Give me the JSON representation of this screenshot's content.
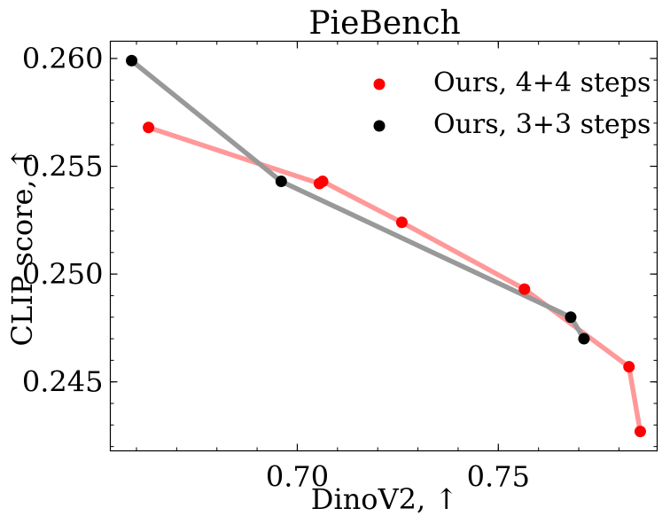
{
  "chart_data": {
    "type": "scatter",
    "title": "PieBench",
    "xlabel": "DinoV2, ↑",
    "ylabel": "CLIP score, ↑",
    "xlim": [
      0.6535,
      0.7895
    ],
    "ylim": [
      0.2418,
      0.2608
    ],
    "x_ticks": [
      0.7,
      0.75
    ],
    "x_tick_labels": [
      "0.70",
      "0.75"
    ],
    "y_ticks": [
      0.245,
      0.25,
      0.255,
      0.26
    ],
    "y_tick_labels": [
      "0.245",
      "0.250",
      "0.255",
      "0.260"
    ],
    "x_minor_step": 0.01,
    "y_minor_step": 0.001,
    "grid": false,
    "legend_position": "top-right",
    "series": [
      {
        "name": "Ours, 4+4 steps",
        "marker_color": "#ff0000",
        "line_color": "#ff9999",
        "x": [
          0.663,
          0.7055,
          0.7063,
          0.726,
          0.7565,
          0.7825,
          0.7853
        ],
        "y": [
          0.2568,
          0.2542,
          0.2543,
          0.2524,
          0.2493,
          0.2457,
          0.2427
        ]
      },
      {
        "name": "Ours, 3+3 steps",
        "marker_color": "#000000",
        "line_color": "#999999",
        "x": [
          0.6588,
          0.696,
          0.768,
          0.7713
        ],
        "y": [
          0.2599,
          0.2543,
          0.248,
          0.247
        ]
      }
    ]
  }
}
